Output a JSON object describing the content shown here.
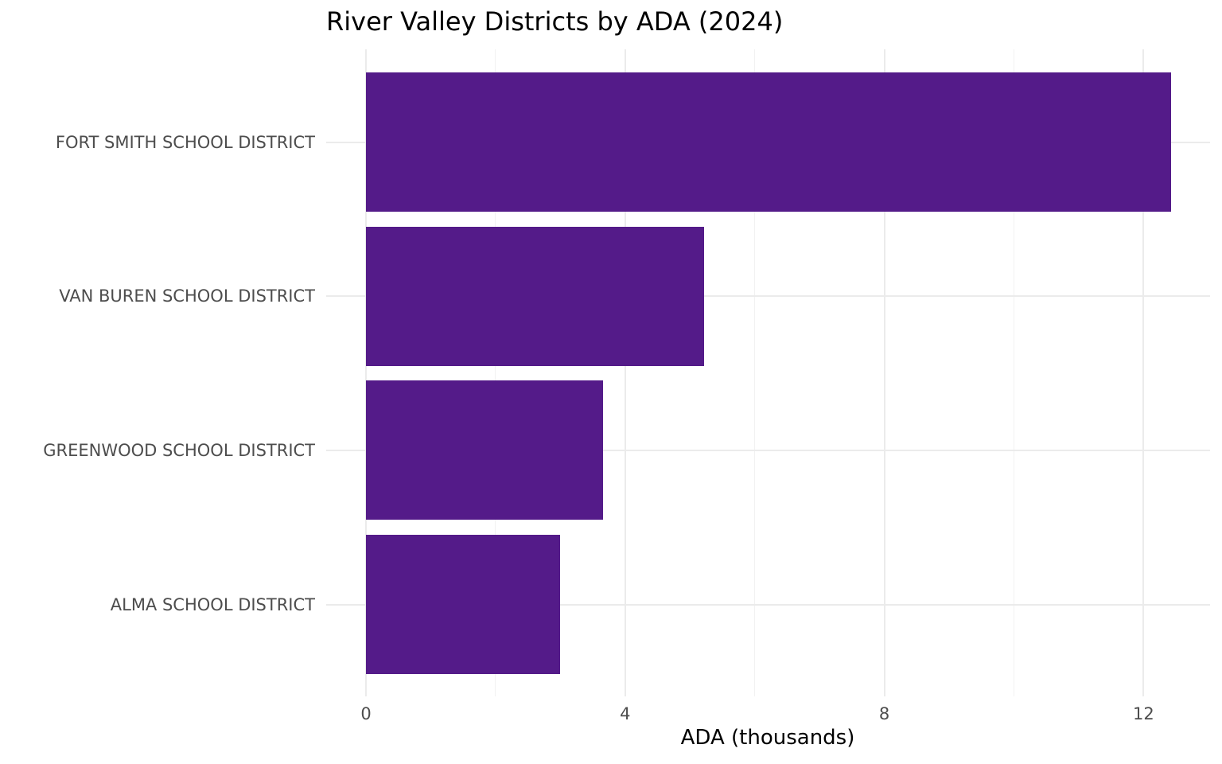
{
  "chart_data": {
    "type": "bar",
    "orientation": "horizontal",
    "title": "River Valley Districts by ADA (2024)",
    "xlabel": "ADA (thousands)",
    "ylabel": "",
    "categories": [
      "FORT SMITH SCHOOL DISTRICT",
      "VAN BUREN SCHOOL DISTRICT",
      "GREENWOOD SCHOOL DISTRICT",
      "ALMA SCHOOL DISTRICT"
    ],
    "values": [
      12.42,
      5.22,
      3.66,
      3.0
    ],
    "xlim": [
      0,
      13
    ],
    "xticks": [
      "0",
      "4",
      "8",
      "12"
    ],
    "grid": true,
    "legend": null,
    "bar_color": "#541b89"
  }
}
